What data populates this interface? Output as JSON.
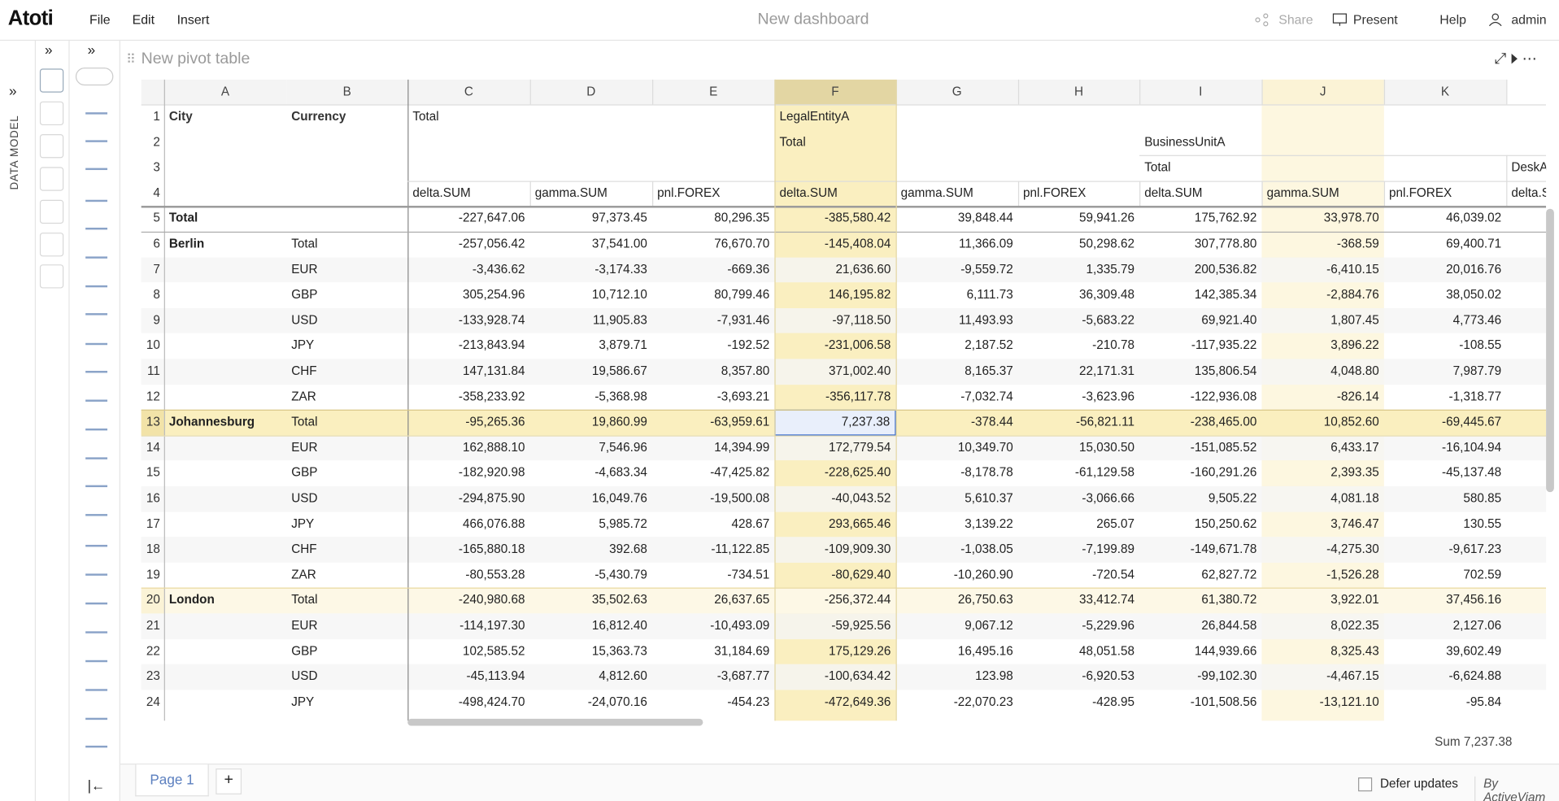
{
  "header": {
    "logo": "Atoti",
    "menu": [
      "File",
      "Edit",
      "Insert"
    ],
    "title": "New dashboard",
    "actions": [
      "Share",
      "Present",
      "Help",
      "admin"
    ]
  },
  "sidebar": {
    "data_model": "DATA MODEL"
  },
  "widget": {
    "title": "New pivot table"
  },
  "grid": {
    "columns": [
      "A",
      "B",
      "C",
      "D",
      "E",
      "F",
      "G",
      "H",
      "I",
      "J",
      "K"
    ],
    "row_numbers": [
      1,
      2,
      3,
      4,
      5,
      6,
      7,
      8,
      9,
      10,
      11,
      12,
      13,
      14,
      15,
      16,
      17,
      18,
      19,
      20,
      21,
      22,
      23,
      24
    ],
    "header_rows": [
      [
        "City",
        "Currency",
        "Total",
        null,
        null,
        "LegalEntityA",
        null,
        null,
        null,
        null,
        null,
        null
      ],
      [
        null,
        null,
        null,
        null,
        null,
        "Total",
        null,
        null,
        "BusinessUnitA",
        null,
        null,
        null
      ],
      [
        null,
        null,
        null,
        null,
        null,
        null,
        null,
        null,
        "Total",
        null,
        null,
        "DeskA"
      ],
      [
        null,
        null,
        "delta.SUM",
        "gamma.SUM",
        "pnl.FOREX",
        "delta.SUM",
        "gamma.SUM",
        "pnl.FOREX",
        "delta.SUM",
        "gamma.SUM",
        "pnl.FOREX",
        "delta.SUM"
      ]
    ],
    "rows": [
      [
        "Total",
        null,
        "-227,647.06",
        "97,373.45",
        "80,296.35",
        "-385,580.42",
        "39,848.44",
        "59,941.26",
        "175,762.92",
        "33,978.70",
        "46,039.02"
      ],
      [
        "Berlin",
        "Total",
        "-257,056.42",
        "37,541.00",
        "76,670.70",
        "-145,408.04",
        "11,366.09",
        "50,298.62",
        "307,778.80",
        "-368.59",
        "69,400.71"
      ],
      [
        null,
        "EUR",
        "-3,436.62",
        "-3,174.33",
        "-669.36",
        "21,636.60",
        "-9,559.72",
        "1,335.79",
        "200,536.82",
        "-6,410.15",
        "20,016.76"
      ],
      [
        null,
        "GBP",
        "305,254.96",
        "10,712.10",
        "80,799.46",
        "146,195.82",
        "6,111.73",
        "36,309.48",
        "142,385.34",
        "-2,884.76",
        "38,050.02"
      ],
      [
        null,
        "USD",
        "-133,928.74",
        "11,905.83",
        "-7,931.46",
        "-97,118.50",
        "11,493.93",
        "-5,683.22",
        "69,921.40",
        "1,807.45",
        "4,773.46"
      ],
      [
        null,
        "JPY",
        "-213,843.94",
        "3,879.71",
        "-192.52",
        "-231,006.58",
        "2,187.52",
        "-210.78",
        "-117,935.22",
        "3,896.22",
        "-108.55"
      ],
      [
        null,
        "CHF",
        "147,131.84",
        "19,586.67",
        "8,357.80",
        "371,002.40",
        "8,165.37",
        "22,171.31",
        "135,806.54",
        "4,048.80",
        "7,987.79"
      ],
      [
        null,
        "ZAR",
        "-358,233.92",
        "-5,368.98",
        "-3,693.21",
        "-356,117.78",
        "-7,032.74",
        "-3,623.96",
        "-122,936.08",
        "-826.14",
        "-1,318.77"
      ],
      [
        "Johannesburg",
        "Total",
        "-95,265.36",
        "19,860.99",
        "-63,959.61",
        "7,237.38",
        "-378.44",
        "-56,821.11",
        "-238,465.00",
        "10,852.60",
        "-69,445.67"
      ],
      [
        null,
        "EUR",
        "162,888.10",
        "7,546.96",
        "14,394.99",
        "172,779.54",
        "10,349.70",
        "15,030.50",
        "-151,085.52",
        "6,433.17",
        "-16,104.94"
      ],
      [
        null,
        "GBP",
        "-182,920.98",
        "-4,683.34",
        "-47,425.82",
        "-228,625.40",
        "-8,178.78",
        "-61,129.58",
        "-160,291.26",
        "2,393.35",
        "-45,137.48"
      ],
      [
        null,
        "USD",
        "-294,875.90",
        "16,049.76",
        "-19,500.08",
        "-40,043.52",
        "5,610.37",
        "-3,066.66",
        "9,505.22",
        "4,081.18",
        "580.85"
      ],
      [
        null,
        "JPY",
        "466,076.88",
        "5,985.72",
        "428.67",
        "293,665.46",
        "3,139.22",
        "265.07",
        "150,250.62",
        "3,746.47",
        "130.55"
      ],
      [
        null,
        "CHF",
        "-165,880.18",
        "392.68",
        "-11,122.85",
        "-109,909.30",
        "-1,038.05",
        "-7,199.89",
        "-149,671.78",
        "-4,275.30",
        "-9,617.23"
      ],
      [
        null,
        "ZAR",
        "-80,553.28",
        "-5,430.79",
        "-734.51",
        "-80,629.40",
        "-10,260.90",
        "-720.54",
        "62,827.72",
        "-1,526.28",
        "702.59"
      ],
      [
        "London",
        "Total",
        "-240,980.68",
        "35,502.63",
        "26,637.65",
        "-256,372.44",
        "26,750.63",
        "33,412.74",
        "61,380.72",
        "3,922.01",
        "37,456.16"
      ],
      [
        null,
        "EUR",
        "-114,197.30",
        "16,812.40",
        "-10,493.09",
        "-59,925.56",
        "9,067.12",
        "-5,229.96",
        "26,844.58",
        "8,022.35",
        "2,127.06"
      ],
      [
        null,
        "GBP",
        "102,585.52",
        "15,363.73",
        "31,184.69",
        "175,129.26",
        "16,495.16",
        "48,051.58",
        "144,939.66",
        "8,325.43",
        "39,602.49"
      ],
      [
        null,
        "USD",
        "-45,113.94",
        "4,812.60",
        "-3,687.77",
        "-100,634.42",
        "123.98",
        "-6,920.53",
        "-99,102.30",
        "-4,467.15",
        "-6,624.88"
      ],
      [
        null,
        "JPY",
        "-498,424.70",
        "-24,070.16",
        "-454.23",
        "-472,649.36",
        "-22,070.23",
        "-428.95",
        "-101,508.56",
        "-13,121.10",
        "-95.84"
      ]
    ]
  },
  "status": {
    "sum": "Sum 7,237.38"
  },
  "footer": {
    "tab": "Page 1",
    "add": "+",
    "defer": "Defer updates",
    "brand": "By ActiveViam"
  }
}
